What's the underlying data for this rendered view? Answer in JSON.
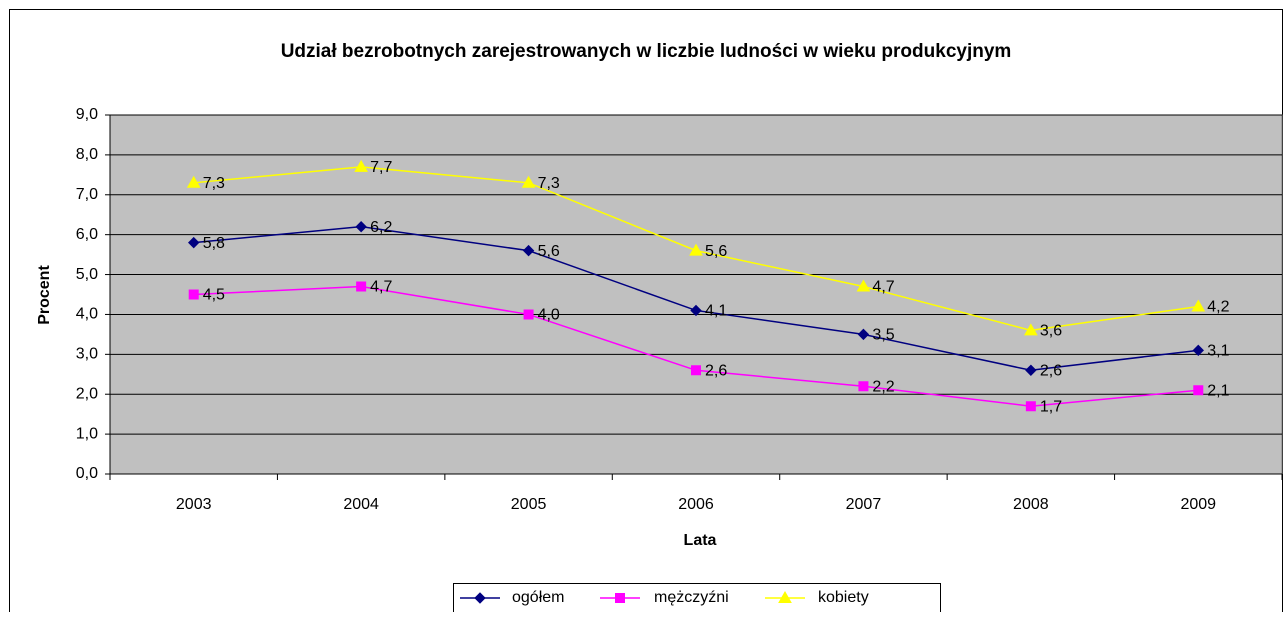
{
  "chart_data": {
    "type": "line",
    "title": "Udział bezrobotnych zarejestrowanych w liczbie ludności w wieku produkcyjnym",
    "x_label": "Lata",
    "y_label": "Procent",
    "categories": [
      "2003",
      "2004",
      "2005",
      "2006",
      "2007",
      "2008",
      "2009"
    ],
    "series": [
      {
        "name": "ogółem",
        "color": "#000080",
        "marker": "diamond",
        "values": [
          5.8,
          6.2,
          5.6,
          4.1,
          3.5,
          2.6,
          3.1
        ],
        "value_labels": [
          "5,8",
          "6,2",
          "5,6",
          "4,1",
          "3,5",
          "2,6",
          "3,1"
        ]
      },
      {
        "name": "mężczyźni",
        "color": "#ff00ff",
        "marker": "square",
        "values": [
          4.5,
          4.7,
          4.0,
          2.6,
          2.2,
          1.7,
          2.1
        ],
        "value_labels": [
          "4,5",
          "4,7",
          "4,0",
          "2,6",
          "2,2",
          "1,7",
          "2,1"
        ]
      },
      {
        "name": "kobiety",
        "color": "#ffff00",
        "marker": "triangle",
        "values": [
          7.3,
          7.7,
          7.3,
          5.6,
          4.7,
          3.6,
          4.2
        ],
        "value_labels": [
          "7,3",
          "7,7",
          "7,3",
          "5,6",
          "4,7",
          "3,6",
          "4,2"
        ]
      }
    ],
    "ylim": [
      0,
      9
    ],
    "yticks": [
      {
        "value": 0,
        "label": "0,0"
      },
      {
        "value": 1,
        "label": "1,0"
      },
      {
        "value": 2,
        "label": "2,0"
      },
      {
        "value": 3,
        "label": "3,0"
      },
      {
        "value": 4,
        "label": "4,0"
      },
      {
        "value": 5,
        "label": "5,0"
      },
      {
        "value": 6,
        "label": "6,0"
      },
      {
        "value": 7,
        "label": "7,0"
      },
      {
        "value": 8,
        "label": "8,0"
      },
      {
        "value": 9,
        "label": "9,0"
      }
    ],
    "grid": true,
    "plot_background": "#c0c0c0",
    "legend": "bottom"
  }
}
